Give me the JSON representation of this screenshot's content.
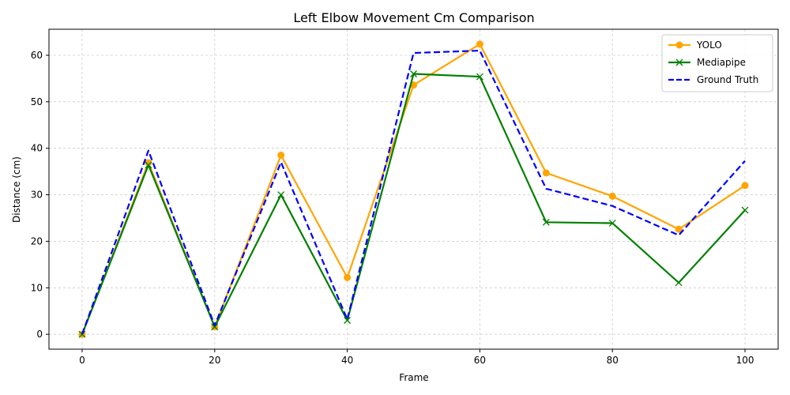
{
  "chart_data": {
    "type": "line",
    "title": "Left Elbow Movement Cm Comparison",
    "xlabel": "Frame",
    "ylabel": "Distance (cm)",
    "x": [
      0,
      10,
      20,
      30,
      40,
      50,
      60,
      70,
      80,
      90,
      100
    ],
    "xlim": [
      -5,
      105
    ],
    "ylim": [
      -3.2,
      65.6
    ],
    "xticks": [
      0,
      20,
      40,
      60,
      80,
      100
    ],
    "yticks": [
      0,
      10,
      20,
      30,
      40,
      50,
      60
    ],
    "grid": true,
    "legend_position": "top-right",
    "series": [
      {
        "name": "YOLO",
        "color": "#ffa500",
        "style": "solid",
        "marker": "circle",
        "values": [
          0,
          36.9,
          1.6,
          38.5,
          12.2,
          53.6,
          62.4,
          34.7,
          29.7,
          22.6,
          32.0
        ]
      },
      {
        "name": "Mediapipe",
        "color": "#008000",
        "style": "solid",
        "marker": "x",
        "values": [
          0,
          36.4,
          1.6,
          30.0,
          3.0,
          56.0,
          55.4,
          24.1,
          23.9,
          11.1,
          26.7
        ]
      },
      {
        "name": "Ground Truth",
        "color": "#0000ff",
        "style": "dashed",
        "marker": "none",
        "values": [
          0,
          39.5,
          1.9,
          37.0,
          3.2,
          60.5,
          61.0,
          31.3,
          27.6,
          21.3,
          37.3
        ]
      }
    ]
  }
}
